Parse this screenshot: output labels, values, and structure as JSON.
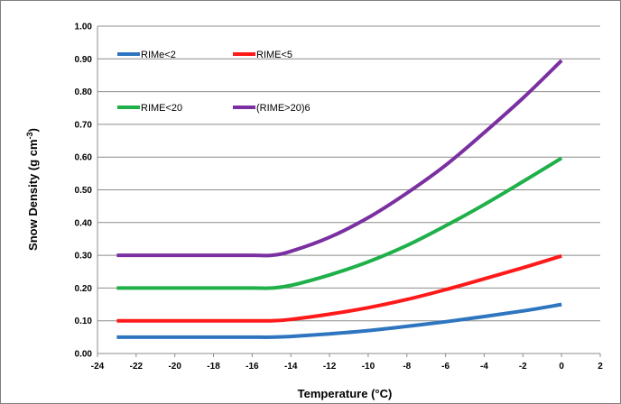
{
  "chart_data": {
    "type": "line",
    "xlabel": "Temperature (°C)",
    "ylabel_main": "Snow Density (g cm",
    "ylabel_sup": "-3",
    "ylabel_close": ")",
    "xlim": [
      -24,
      2
    ],
    "ylim": [
      0,
      1
    ],
    "x_ticks": [
      "-24",
      "-22",
      "-20",
      "-18",
      "-16",
      "-14",
      "-12",
      "-10",
      "-8",
      "-6",
      "-4",
      "-2",
      "0",
      "2"
    ],
    "y_ticks": [
      "0.00",
      "0.10",
      "0.20",
      "0.30",
      "0.40",
      "0.50",
      "0.60",
      "0.70",
      "0.80",
      "0.90",
      "1.00"
    ],
    "grid": "horizontal",
    "legend_placement": "top-left",
    "series": [
      {
        "name": "RIMe<2",
        "color": "#2e75c0",
        "x": [
          -23,
          -22,
          -20,
          -18,
          -16,
          -15,
          -14,
          -12,
          -10,
          -8,
          -6,
          -4,
          -2,
          0
        ],
        "y": [
          0.05,
          0.05,
          0.05,
          0.05,
          0.05,
          0.05,
          0.052,
          0.06,
          0.07,
          0.083,
          0.097,
          0.113,
          0.13,
          0.15
        ]
      },
      {
        "name": "RIME<5",
        "color": "#ff1a1a",
        "x": [
          -23,
          -22,
          -20,
          -18,
          -16,
          -15,
          -14,
          -12,
          -10,
          -8,
          -6,
          -4,
          -2,
          0
        ],
        "y": [
          0.1,
          0.1,
          0.1,
          0.1,
          0.1,
          0.1,
          0.104,
          0.12,
          0.14,
          0.165,
          0.195,
          0.228,
          0.262,
          0.298
        ]
      },
      {
        "name": "RIME<20",
        "color": "#1fb04a",
        "x": [
          -23,
          -22,
          -20,
          -18,
          -16,
          -15,
          -14,
          -12,
          -10,
          -8,
          -6,
          -4,
          -2,
          0
        ],
        "y": [
          0.2,
          0.2,
          0.2,
          0.2,
          0.2,
          0.2,
          0.208,
          0.24,
          0.28,
          0.33,
          0.39,
          0.455,
          0.525,
          0.597
        ]
      },
      {
        "name": "(RIME>20)6",
        "color": "#7a30a0",
        "x": [
          -23,
          -22,
          -20,
          -18,
          -16,
          -15,
          -14,
          -12,
          -10,
          -8,
          -6,
          -4,
          -2,
          0
        ],
        "y": [
          0.3,
          0.3,
          0.3,
          0.3,
          0.3,
          0.3,
          0.312,
          0.355,
          0.415,
          0.49,
          0.575,
          0.675,
          0.78,
          0.895
        ]
      }
    ]
  }
}
